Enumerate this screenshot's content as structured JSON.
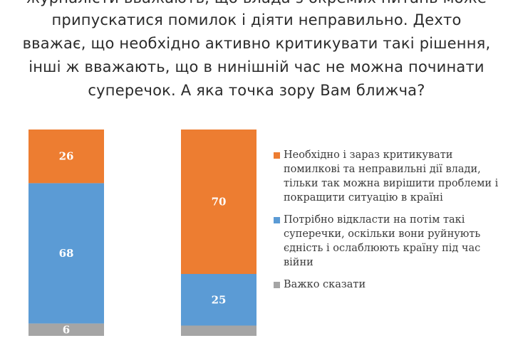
{
  "question": {
    "lines": [
      "журналісти вважають, що влада з окремих питань може",
      "припускатися помилок і діяти неправильно.  Дехто",
      "вважає, що необхідно активно критикувати такі рішення,",
      "інші ж вважають, що в нинішній час не можна починати",
      "суперечок. А яка точка зору Вам ближча?"
    ]
  },
  "chart_data": {
    "type": "bar",
    "stacked": true,
    "orientation": "vertical",
    "categories": [
      "",
      ""
    ],
    "series": [
      {
        "name": "Важко сказати",
        "color": "#a5a5a5",
        "values": [
          6,
          5
        ],
        "labels": [
          "6",
          ""
        ]
      },
      {
        "name": "Потрібно відкласти на потім такі суперечки, оскільки вони руйнують єдність і ослаблюють країну під час війни",
        "color": "#5b9bd5",
        "values": [
          68,
          25
        ],
        "labels": [
          "68",
          "25"
        ]
      },
      {
        "name": "Необхідно і зараз критикувати помилкові та неправильні дії влади, тільки так можна вирішити проблеми і покращити ситуацію в країні",
        "color": "#ed7d31",
        "values": [
          26,
          70
        ],
        "labels": [
          "26",
          "70"
        ]
      }
    ],
    "ylim": [
      0,
      100
    ],
    "legend_position": "right"
  }
}
